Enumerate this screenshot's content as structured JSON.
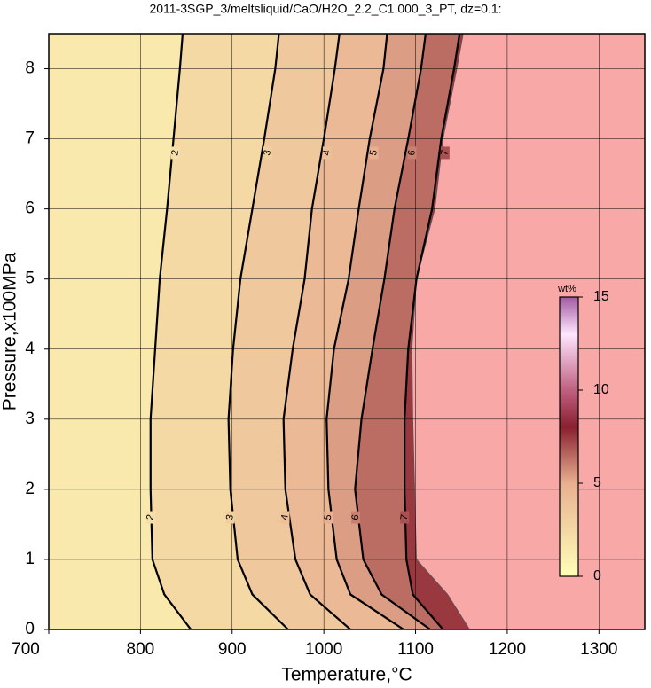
{
  "chart_data": {
    "type": "contour",
    "title": "2011-3SGP_3/meltsliquid/CaO/H2O_2.2_C1.000_3_PT, dz=0.1:",
    "x_label": "Temperature,°C",
    "y_label": "Pressure,x100MPa",
    "xlim": [
      700,
      1350
    ],
    "xticks": [
      700,
      800,
      900,
      1000,
      1100,
      1200,
      1300
    ],
    "ylim": [
      0,
      8.5
    ],
    "yticks": [
      0,
      1,
      2,
      3,
      4,
      5,
      6,
      7,
      8
    ],
    "grid": true,
    "y": [
      0,
      0.5,
      1,
      2,
      3,
      4,
      5,
      6,
      7,
      8,
      8.5
    ],
    "series": [
      {
        "name": "2",
        "x": [
          855,
          826,
          813,
          811,
          811,
          816,
          821,
          829,
          836,
          843,
          846
        ]
      },
      {
        "name": "3",
        "x": [
          961,
          922,
          906,
          898,
          896,
          901,
          909,
          922,
          935,
          947,
          951
        ]
      },
      {
        "name": "4",
        "x": [
          1029,
          985,
          969,
          958,
          956,
          966,
          979,
          987,
          1000,
          1012,
          1017
        ]
      },
      {
        "name": "5",
        "x": [
          1087,
          1029,
          1014,
          1005,
          1003,
          1011,
          1027,
          1038,
          1050,
          1065,
          1069
        ]
      },
      {
        "name": "6",
        "x": [
          1116,
          1063,
          1043,
          1034,
          1041,
          1053,
          1066,
          1077,
          1092,
          1106,
          1111
        ]
      },
      {
        "name": "7",
        "x": [
          1130,
          1097,
          1090,
          1088,
          1088,
          1092,
          1101,
          1118,
          1128,
          1142,
          1148
        ]
      }
    ],
    "boundary_x": [
      1159,
      1135,
      1101,
      1099,
      1097,
      1096,
      1101,
      1121,
      1130,
      1145,
      1152
    ],
    "background_color": "#f9a8a8",
    "colorbar": {
      "label": "wt%",
      "lim": [
        0,
        15
      ],
      "ticks": [
        0,
        5,
        10,
        15
      ],
      "stops": [
        {
          "value": 0,
          "color": "#ffffb8"
        },
        {
          "value": 5,
          "color": "#e8b090"
        },
        {
          "value": 8,
          "color": "#8a2030"
        },
        {
          "value": 10,
          "color": "#c06080"
        },
        {
          "value": 13,
          "color": "#ffe6ff"
        },
        {
          "value": 15,
          "color": "#a05aa0"
        }
      ]
    }
  }
}
